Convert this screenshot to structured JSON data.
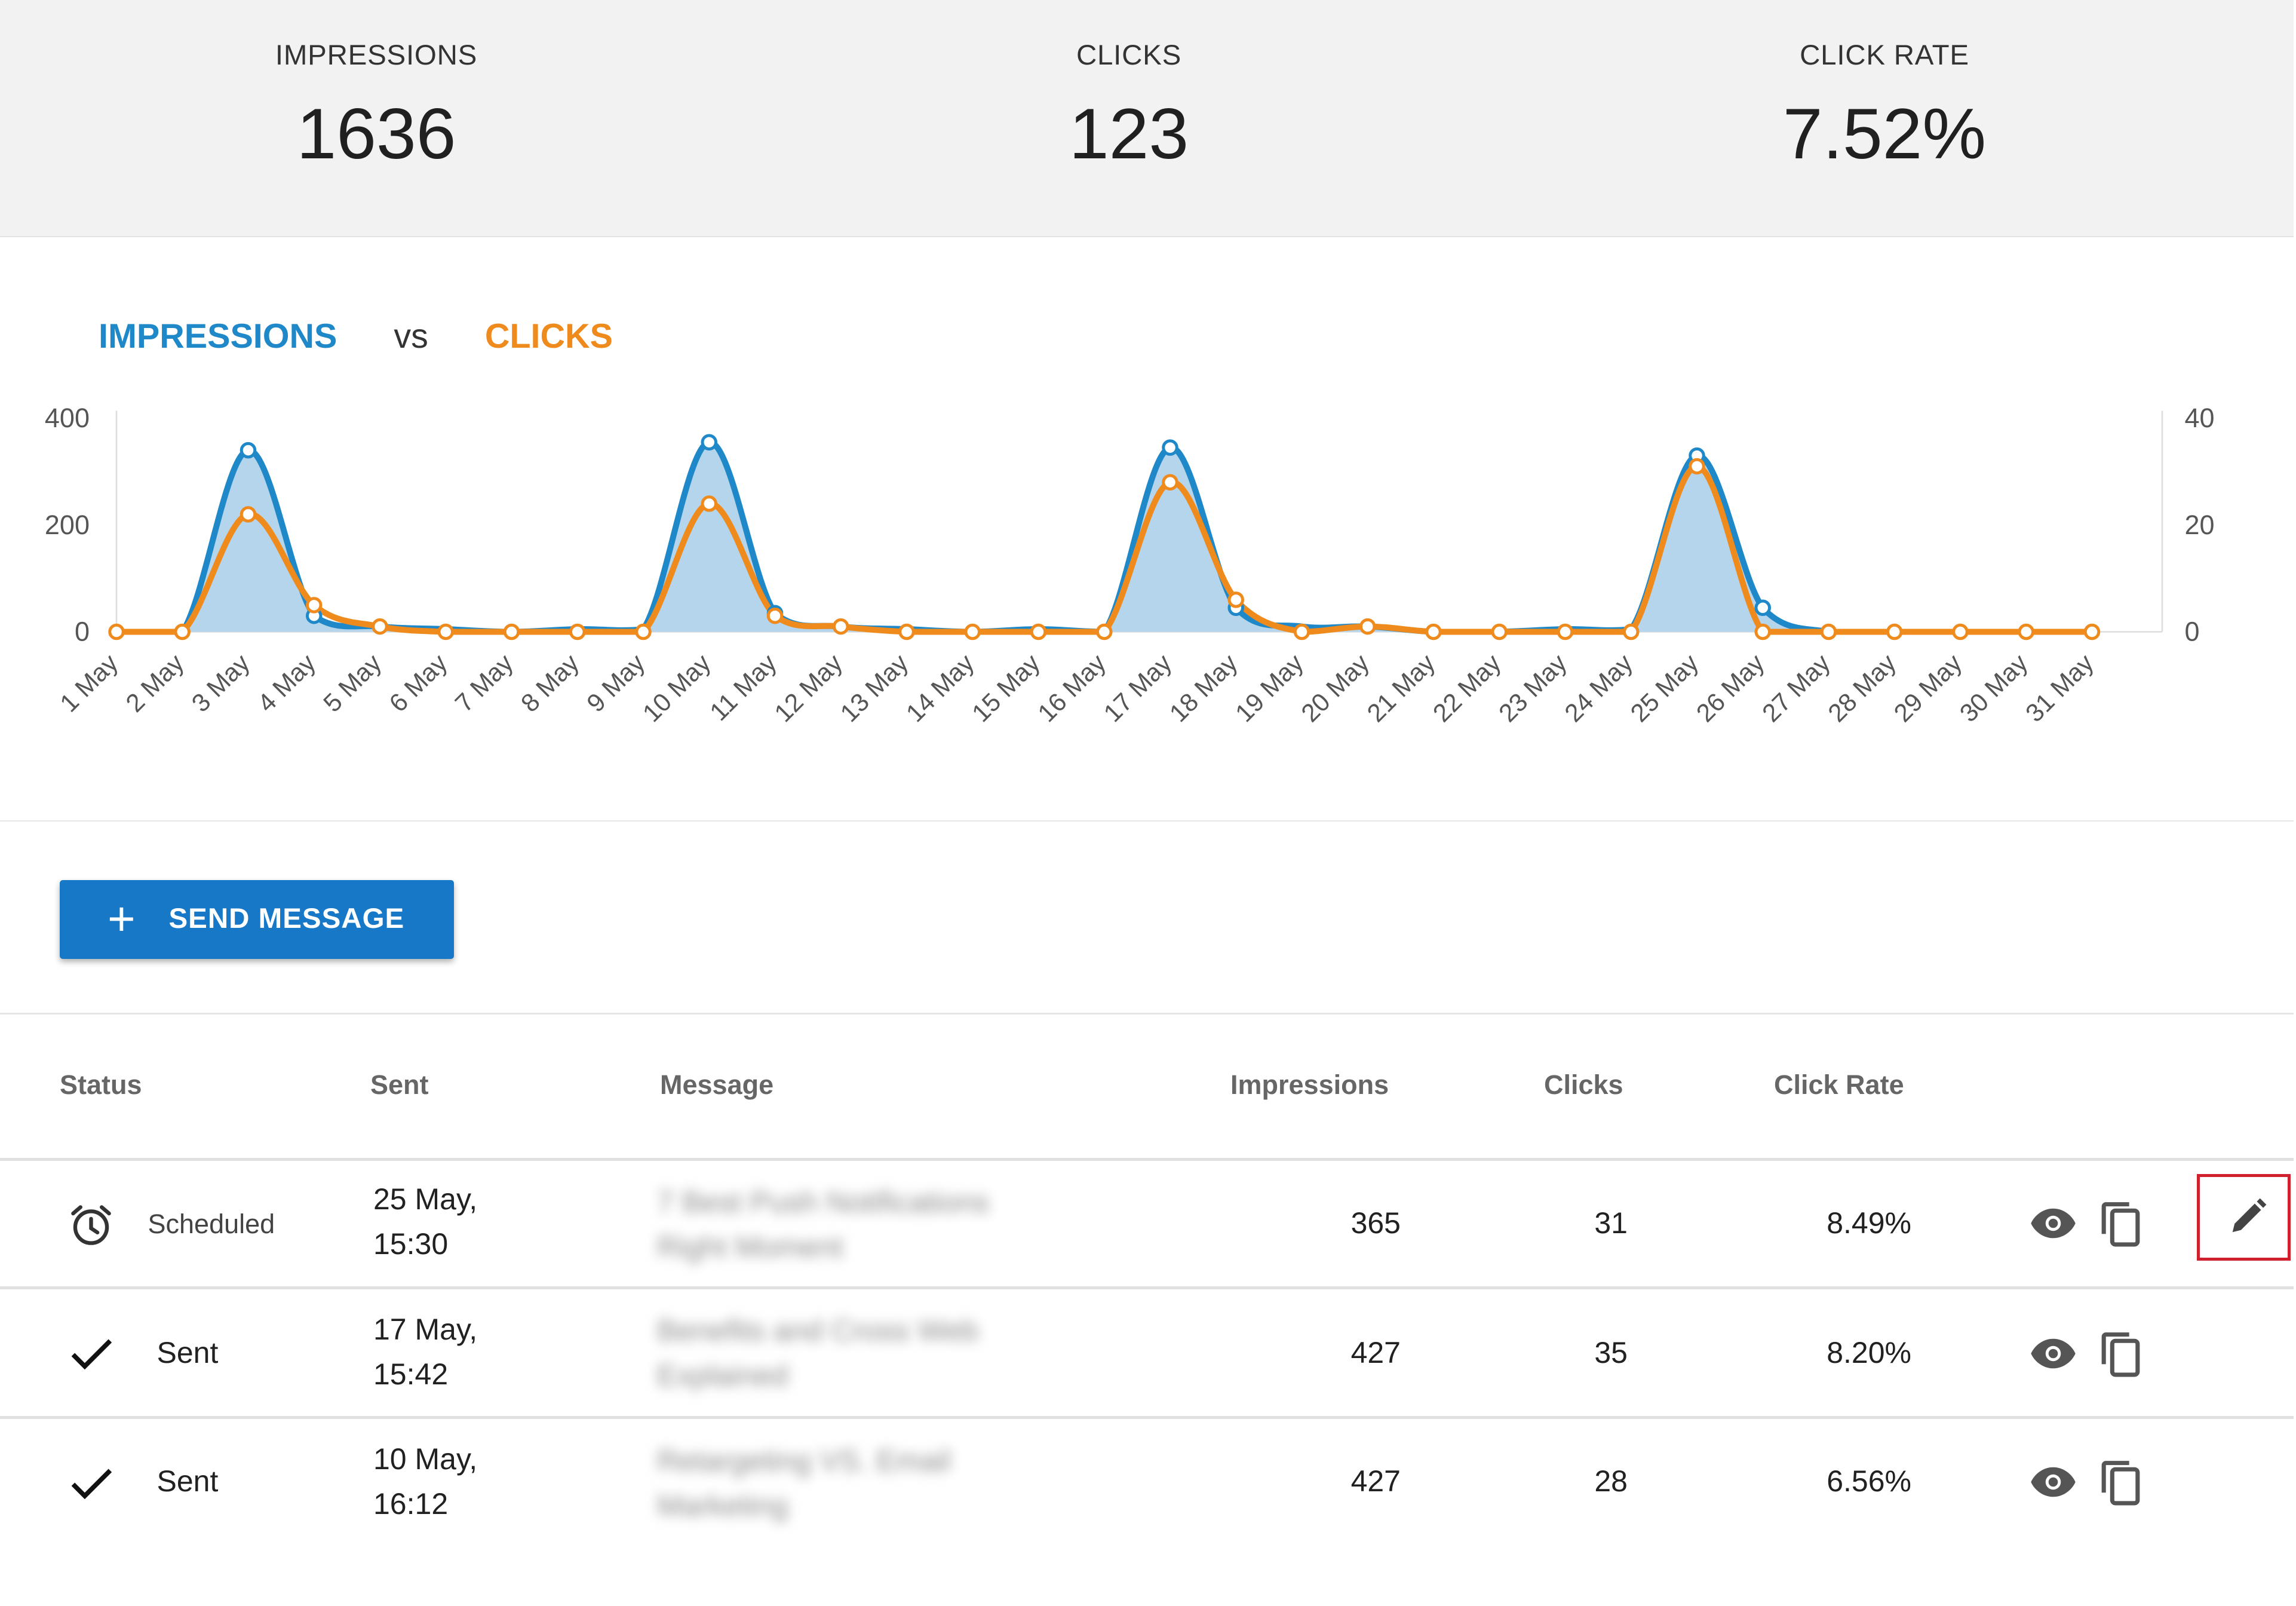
{
  "stats": {
    "impressions_label": "IMPRESSIONS",
    "impressions_value": "1636",
    "clicks_label": "CLICKS",
    "clicks_value": "123",
    "click_rate_label": "CLICK RATE",
    "click_rate_value": "7.52%"
  },
  "legend": {
    "impressions": "IMPRESSIONS",
    "vs": "vs",
    "clicks": "CLICKS"
  },
  "colors": {
    "impressions": "#1e88c9",
    "clicks": "#ef8a1d",
    "area_fill": "#b5d5ec",
    "button": "#1778c8",
    "highlight": "#d0202e"
  },
  "chart_data": {
    "type": "area",
    "x": [
      "1 May",
      "2 May",
      "3 May",
      "4 May",
      "5 May",
      "6 May",
      "7 May",
      "8 May",
      "9 May",
      "10 May",
      "11 May",
      "12 May",
      "13 May",
      "14 May",
      "15 May",
      "16 May",
      "17 May",
      "18 May",
      "19 May",
      "20 May",
      "21 May",
      "22 May",
      "23 May",
      "24 May",
      "25 May",
      "26 May",
      "27 May",
      "28 May",
      "29 May",
      "30 May",
      "31 May"
    ],
    "y_left_ticks": [
      "400",
      "200",
      "0"
    ],
    "y_right_ticks": [
      "40",
      "20",
      "0"
    ],
    "y_left_range": [
      0,
      400
    ],
    "y_right_range": [
      0,
      40
    ],
    "series": [
      {
        "name": "IMPRESSIONS",
        "axis": "left",
        "values": [
          0,
          0,
          340,
          30,
          10,
          5,
          0,
          5,
          5,
          355,
          35,
          10,
          5,
          0,
          5,
          0,
          345,
          45,
          10,
          10,
          0,
          0,
          5,
          5,
          330,
          45,
          0,
          0,
          0,
          0,
          0
        ]
      },
      {
        "name": "CLICKS",
        "axis": "right",
        "values": [
          0,
          0,
          22,
          5,
          1,
          0,
          0,
          0,
          0,
          24,
          3,
          1,
          0,
          0,
          0,
          0,
          28,
          6,
          0,
          1,
          0,
          0,
          0,
          0,
          31,
          0,
          0,
          0,
          0,
          0,
          0
        ]
      }
    ]
  },
  "send_button": {
    "label": "SEND MESSAGE"
  },
  "table": {
    "headers": {
      "status": "Status",
      "sent": "Sent",
      "message": "Message",
      "impressions": "Impressions",
      "clicks": "Clicks",
      "click_rate": "Click Rate"
    },
    "rows": [
      {
        "status": "Scheduled",
        "sent_line1": "25 May,",
        "sent_line2": "15:30",
        "message_line1": "7 Best Push Notifications",
        "message_line2": "Right Moment",
        "impressions": "365",
        "clicks": "31",
        "click_rate": "8.49%"
      },
      {
        "status": "Sent",
        "sent_line1": "17 May,",
        "sent_line2": "15:42",
        "message_line1": "Benefits and Cross Web",
        "message_line2": "Explained",
        "impressions": "427",
        "clicks": "35",
        "click_rate": "8.20%"
      },
      {
        "status": "Sent",
        "sent_line1": "10 May,",
        "sent_line2": "16:12",
        "message_line1": "Retargeting VS. Email",
        "message_line2": "Marketing",
        "impressions": "427",
        "clicks": "28",
        "click_rate": "6.56%"
      }
    ]
  }
}
